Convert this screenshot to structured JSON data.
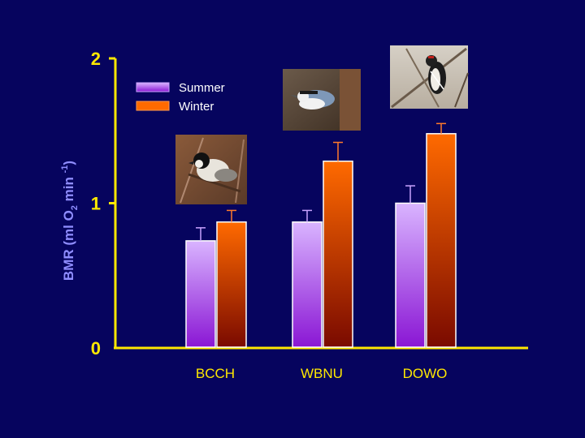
{
  "chart_data": {
    "type": "bar",
    "title": "",
    "xlabel": "",
    "ylabel_parts": [
      "BMR (ml O",
      "2",
      " min ",
      "-1",
      ")"
    ],
    "categories": [
      "BCCH",
      "WBNU",
      "DOWO"
    ],
    "ylim": [
      0,
      2
    ],
    "yticks": [
      "0",
      "1",
      "2"
    ],
    "series": [
      {
        "name": "Summer",
        "values": [
          0.74,
          0.87,
          1.0
        ],
        "errors": [
          0.09,
          0.08,
          0.12
        ],
        "color_top": "#d9b4ff",
        "color_bottom": "#8a16d4"
      },
      {
        "name": "Winter",
        "values": [
          0.87,
          1.29,
          1.48
        ],
        "errors": [
          0.08,
          0.13,
          0.07
        ],
        "color_top": "#ff6a00",
        "color_bottom": "#7a0a00"
      }
    ],
    "legend_position": "top-left",
    "grid": false,
    "images": [
      "black-capped-chickadee-photo",
      "white-breasted-nuthatch-photo",
      "downy-woodpecker-photo"
    ]
  },
  "colors": {
    "background": "#06045e",
    "axis": "#ffe800",
    "ylabel": "#8f8dff",
    "legend_text": "#ffffff"
  }
}
